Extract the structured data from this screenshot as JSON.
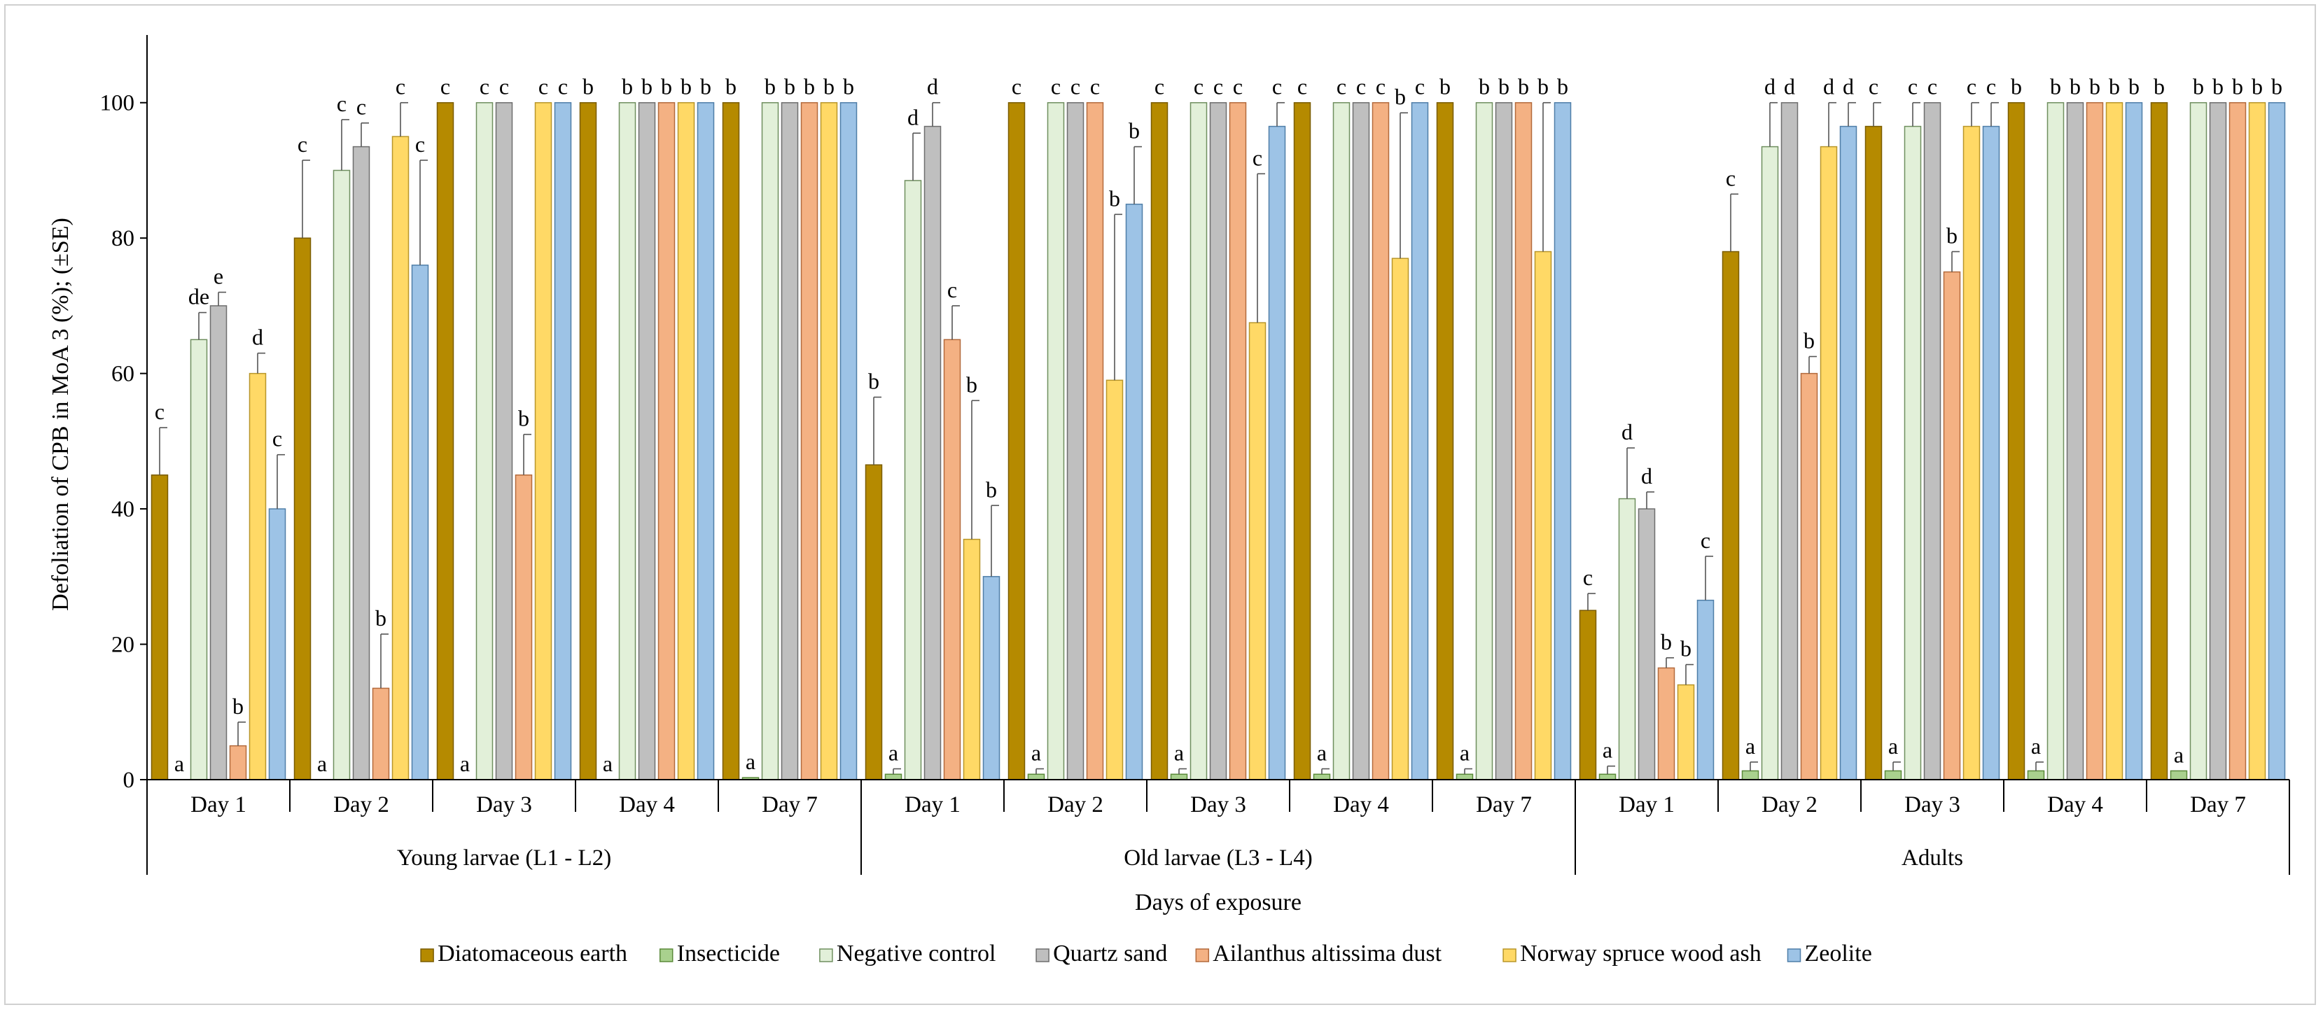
{
  "chart_data": {
    "type": "bar",
    "ylabel": "Defoliation of CPB in MoA 3 (%); (±SE)",
    "xlabel": "Days of exposure",
    "ylim": [
      0,
      110
    ],
    "yticks": [
      "0",
      "20",
      "40",
      "60",
      "80",
      "100"
    ],
    "grid": false,
    "legend_position": "bottom",
    "day_labels": [
      "Day 1",
      "Day 2",
      "Day 3",
      "Day 4",
      "Day 7"
    ],
    "stage_labels": [
      "Young larvae (L1 - L2)",
      "Old larvae (L3 - L4)",
      "Adults"
    ],
    "series": [
      {
        "name": "Diatomaceous earth",
        "color": "#b58a00",
        "border": "#7a5c00"
      },
      {
        "name": "Insecticide",
        "color": "#a9d18e",
        "border": "#5b8a3a"
      },
      {
        "name": "Negative control",
        "color": "#e2f0d9",
        "border": "#6f8f5f"
      },
      {
        "name": "Quartz sand",
        "color": "#bfbfbf",
        "border": "#6e6e6e"
      },
      {
        "name": "Ailanthus altissima dust",
        "color": "#f4b183",
        "border": "#b36a3c"
      },
      {
        "name": "Norway spruce wood ash",
        "color": "#ffd966",
        "border": "#b8962a"
      },
      {
        "name": "Zeolite",
        "color": "#9dc3e6",
        "border": "#4f7ea8"
      }
    ],
    "groups": [
      {
        "values": [
          45,
          0,
          65,
          70,
          5,
          60,
          40
        ],
        "errors": [
          7,
          0,
          4,
          2,
          3.5,
          3,
          8
        ],
        "letters": [
          "c",
          "a",
          "de",
          "e",
          "b",
          "d",
          "c"
        ]
      },
      {
        "values": [
          80,
          0,
          90,
          93.5,
          13.5,
          95,
          76
        ],
        "errors": [
          11.5,
          0,
          7.5,
          3.5,
          8,
          5,
          15.5
        ],
        "letters": [
          "c",
          "a",
          "c",
          "c",
          "b",
          "c",
          "c"
        ]
      },
      {
        "values": [
          100,
          0,
          100,
          100,
          45,
          100,
          100
        ],
        "errors": [
          0,
          0,
          0,
          0,
          6,
          0,
          0
        ],
        "letters": [
          "c",
          "a",
          "c",
          "c",
          "b",
          "c",
          "c"
        ]
      },
      {
        "values": [
          100,
          0,
          100,
          100,
          100,
          100,
          100
        ],
        "errors": [
          0,
          0,
          0,
          0,
          0,
          0,
          0
        ],
        "letters": [
          "b",
          "a",
          "b",
          "b",
          "b",
          "b",
          "b"
        ]
      },
      {
        "values": [
          100,
          0.3,
          100,
          100,
          100,
          100,
          100
        ],
        "errors": [
          0,
          0,
          0,
          0,
          0,
          0,
          0
        ],
        "letters": [
          "b",
          "a",
          "b",
          "b",
          "b",
          "b",
          "b"
        ]
      },
      {
        "values": [
          46.5,
          0.8,
          88.5,
          96.5,
          65,
          35.5,
          30
        ],
        "errors": [
          10,
          0.8,
          7,
          3.5,
          5,
          20.5,
          10.5
        ],
        "letters": [
          "b",
          "a",
          "d",
          "d",
          "c",
          "b",
          "b"
        ]
      },
      {
        "values": [
          100,
          0.8,
          100,
          100,
          100,
          59,
          85
        ],
        "errors": [
          0,
          0.8,
          0,
          0,
          0,
          24.5,
          8.5
        ],
        "letters": [
          "c",
          "a",
          "c",
          "c",
          "c",
          "b",
          "b"
        ]
      },
      {
        "values": [
          100,
          0.8,
          100,
          100,
          100,
          67.5,
          96.5
        ],
        "errors": [
          0,
          0.8,
          0,
          0,
          0,
          22,
          3.5
        ],
        "letters": [
          "c",
          "a",
          "c",
          "c",
          "c",
          "c",
          "c"
        ]
      },
      {
        "values": [
          100,
          0.8,
          100,
          100,
          100,
          77,
          100
        ],
        "errors": [
          0,
          0.8,
          0,
          0,
          0,
          21.5,
          0
        ],
        "letters": [
          "c",
          "a",
          "c",
          "c",
          "c",
          "b",
          "c"
        ]
      },
      {
        "values": [
          100,
          0.8,
          100,
          100,
          100,
          78,
          100
        ],
        "errors": [
          0,
          0.8,
          0,
          0,
          0,
          22,
          0
        ],
        "letters": [
          "b",
          "a",
          "b",
          "b",
          "b",
          "b",
          "b"
        ]
      },
      {
        "values": [
          25,
          0.8,
          41.5,
          40,
          16.5,
          14,
          26.5
        ],
        "errors": [
          2.5,
          1.2,
          7.5,
          2.5,
          1.5,
          3,
          6.5
        ],
        "letters": [
          "c",
          "a",
          "d",
          "d",
          "b",
          "b",
          "c"
        ]
      },
      {
        "values": [
          78,
          1.3,
          93.5,
          100,
          60,
          93.5,
          96.5
        ],
        "errors": [
          8.5,
          1.3,
          6.5,
          0,
          2.5,
          6.5,
          3.5
        ],
        "letters": [
          "c",
          "a",
          "d",
          "d",
          "b",
          "d",
          "d"
        ]
      },
      {
        "values": [
          96.5,
          1.3,
          96.5,
          100,
          75,
          96.5,
          96.5
        ],
        "errors": [
          3.5,
          1.3,
          3.5,
          0,
          3,
          3.5,
          3.5
        ],
        "letters": [
          "c",
          "a",
          "c",
          "c",
          "b",
          "c",
          "c"
        ]
      },
      {
        "values": [
          100,
          1.3,
          100,
          100,
          100,
          100,
          100
        ],
        "errors": [
          0,
          1.3,
          0,
          0,
          0,
          0,
          0
        ],
        "letters": [
          "b",
          "a",
          "b",
          "b",
          "b",
          "b",
          "b"
        ]
      },
      {
        "values": [
          100,
          1.3,
          100,
          100,
          100,
          100,
          100
        ],
        "errors": [
          0,
          0,
          0,
          0,
          0,
          0,
          0
        ],
        "letters": [
          "b",
          "a",
          "b",
          "b",
          "b",
          "b",
          "b"
        ]
      }
    ]
  }
}
